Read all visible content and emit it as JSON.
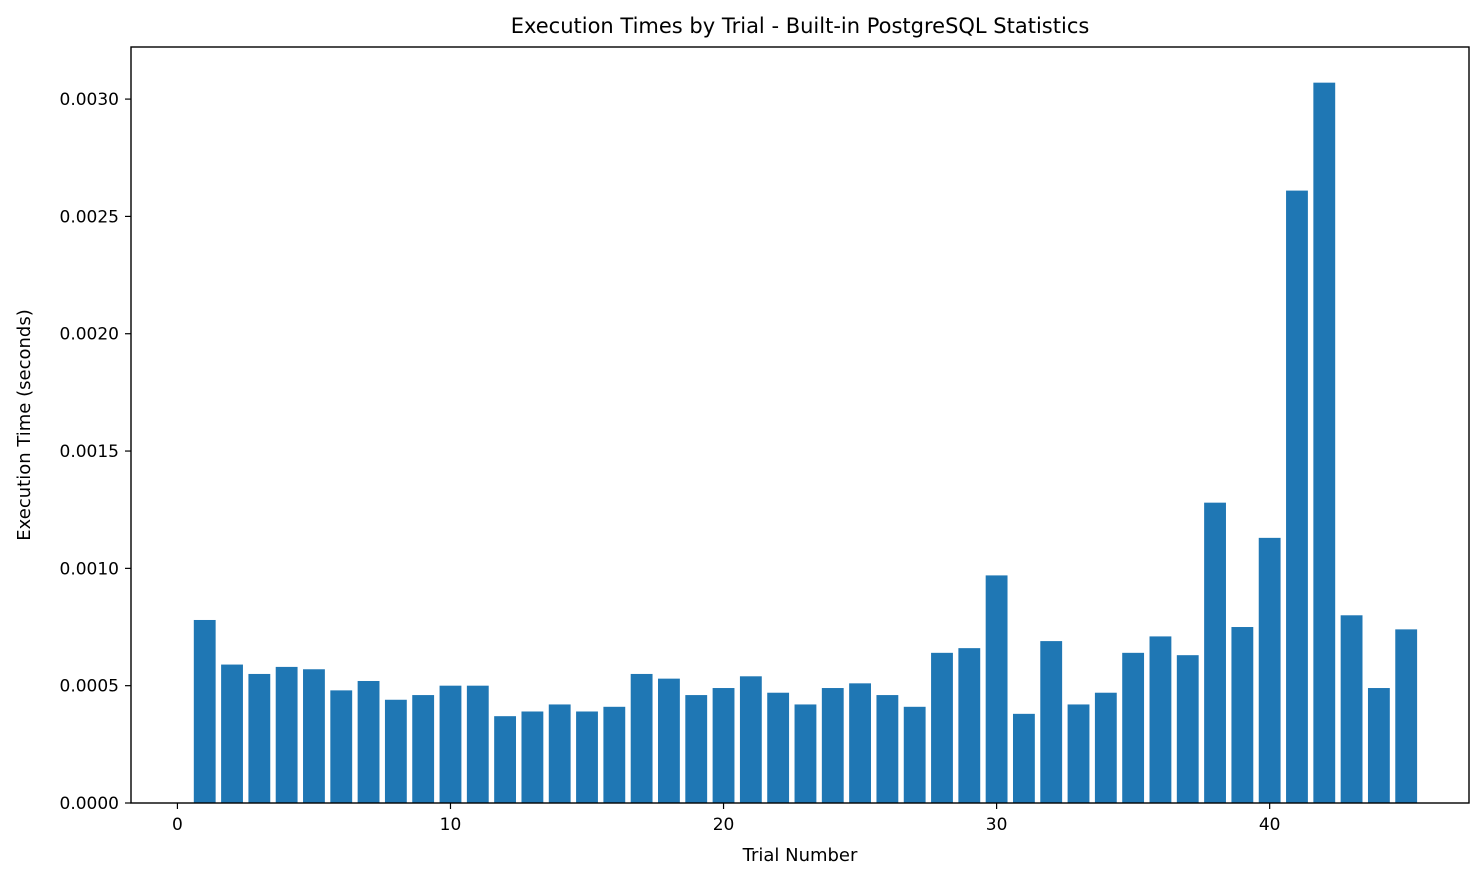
{
  "chart_data": {
    "type": "bar",
    "title": "Execution Times by Trial - Built-in PostgreSQL Statistics",
    "xlabel": "Trial Number",
    "ylabel": "Execution Time (seconds)",
    "xlim": [
      -1.7,
      47.3
    ],
    "ylim": [
      0.0,
      0.003222
    ],
    "xticks": [
      0,
      10,
      20,
      30,
      40
    ],
    "yticks": [
      0.0,
      0.0005,
      0.001,
      0.0015,
      0.002,
      0.0025,
      0.003
    ],
    "xtick_labels": [
      "0",
      "10",
      "20",
      "30",
      "40"
    ],
    "ytick_labels": [
      "0.0000",
      "0.0005",
      "0.0010",
      "0.0015",
      "0.0020",
      "0.0025",
      "0.0030"
    ],
    "grid": false,
    "color": "#1f77b4",
    "x": [
      1,
      2,
      3,
      4,
      5,
      6,
      7,
      8,
      9,
      10,
      11,
      12,
      13,
      14,
      15,
      16,
      17,
      18,
      19,
      20,
      21,
      22,
      23,
      24,
      25,
      26,
      27,
      28,
      29,
      30,
      31,
      32,
      33,
      34,
      35,
      36,
      37,
      38,
      39,
      40,
      41,
      42,
      43,
      44,
      45
    ],
    "values": [
      0.00078,
      0.00059,
      0.00055,
      0.00058,
      0.00057,
      0.00048,
      0.00052,
      0.00044,
      0.00046,
      0.0005,
      0.0005,
      0.00037,
      0.00039,
      0.00042,
      0.00039,
      0.00041,
      0.00055,
      0.00053,
      0.00046,
      0.00049,
      0.00054,
      0.00047,
      0.00042,
      0.00049,
      0.00051,
      0.00046,
      0.00041,
      0.00064,
      0.00066,
      0.00097,
      0.00038,
      0.00069,
      0.00042,
      0.00047,
      0.00064,
      0.00071,
      0.00063,
      0.00128,
      0.00075,
      0.00113,
      0.00261,
      0.00307,
      0.0008,
      0.00049,
      0.00074
    ]
  }
}
